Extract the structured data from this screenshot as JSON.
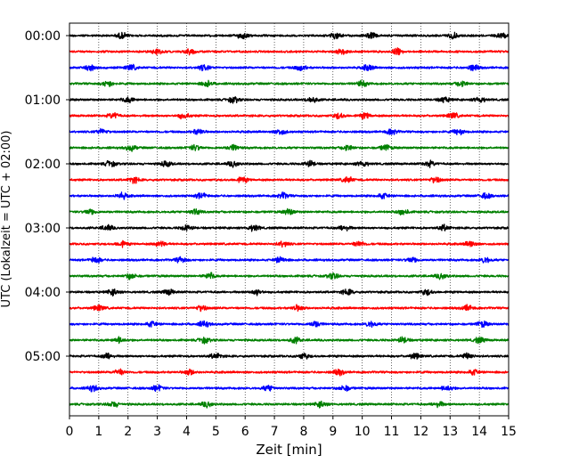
{
  "chart_data": {
    "type": "line",
    "title": "",
    "xlabel": "Zeit  [min]",
    "ylabel": "UTC (Lokalzeit = UTC + 02:00)",
    "xlim": [
      0,
      15
    ],
    "x_ticks": [
      "0",
      "1",
      "2",
      "3",
      "4",
      "5",
      "6",
      "7",
      "8",
      "9",
      "10",
      "11",
      "12",
      "13",
      "14",
      "15"
    ],
    "vertical_grid": "dotted, every 1 min",
    "y_tick_labels": [
      {
        "label": "00:00",
        "row": 0
      },
      {
        "label": "01:00",
        "row": 4
      },
      {
        "label": "02:00",
        "row": 8
      },
      {
        "label": "03:00",
        "row": 12
      },
      {
        "label": "04:00",
        "row": 16
      },
      {
        "label": "05:00",
        "row": 20
      }
    ],
    "trace_interval_min": 15,
    "trace_colors_cycle": [
      "#000000",
      "#ff0000",
      "#0000ff",
      "#008000"
    ],
    "rows": [
      {
        "start": "00:00",
        "color": "#000000",
        "bursts_min": [
          1.8,
          5.9,
          9.1,
          10.3,
          13.1,
          14.8
        ]
      },
      {
        "start": "00:15",
        "color": "#ff0000",
        "bursts_min": [
          3.0,
          4.1,
          9.3,
          11.2
        ]
      },
      {
        "start": "00:30",
        "color": "#0000ff",
        "bursts_min": [
          0.7,
          2.1,
          4.6,
          7.9,
          10.2,
          13.8
        ]
      },
      {
        "start": "00:45",
        "color": "#008000",
        "bursts_min": [
          1.3,
          4.7,
          10.0,
          13.4
        ]
      },
      {
        "start": "01:00",
        "color": "#000000",
        "bursts_min": [
          2.0,
          5.6,
          8.3,
          12.8,
          14.0
        ]
      },
      {
        "start": "01:15",
        "color": "#ff0000",
        "bursts_min": [
          1.5,
          3.9,
          9.2,
          10.1,
          13.1
        ]
      },
      {
        "start": "01:30",
        "color": "#0000ff",
        "bursts_min": [
          1.1,
          4.4,
          7.2,
          11.0,
          13.3
        ]
      },
      {
        "start": "01:45",
        "color": "#008000",
        "bursts_min": [
          2.1,
          4.3,
          5.6,
          9.5,
          10.8
        ]
      },
      {
        "start": "02:00",
        "color": "#000000",
        "bursts_min": [
          1.4,
          3.3,
          5.6,
          8.2,
          10.0,
          12.3
        ]
      },
      {
        "start": "02:15",
        "color": "#ff0000",
        "bursts_min": [
          2.2,
          5.9,
          9.5,
          12.5
        ]
      },
      {
        "start": "02:30",
        "color": "#0000ff",
        "bursts_min": [
          1.8,
          4.5,
          7.3,
          10.7,
          14.2
        ]
      },
      {
        "start": "02:45",
        "color": "#008000",
        "bursts_min": [
          0.7,
          4.3,
          7.5,
          11.4
        ]
      },
      {
        "start": "03:00",
        "color": "#000000",
        "bursts_min": [
          1.3,
          4.0,
          6.3,
          9.4,
          12.8
        ]
      },
      {
        "start": "03:15",
        "color": "#ff0000",
        "bursts_min": [
          1.8,
          3.1,
          7.3,
          9.9,
          13.7
        ]
      },
      {
        "start": "03:30",
        "color": "#0000ff",
        "bursts_min": [
          0.9,
          3.8,
          7.2,
          11.7,
          14.2
        ]
      },
      {
        "start": "03:45",
        "color": "#008000",
        "bursts_min": [
          2.1,
          4.8,
          9.0,
          12.7
        ]
      },
      {
        "start": "04:00",
        "color": "#000000",
        "bursts_min": [
          1.5,
          3.4,
          6.4,
          9.5,
          12.2
        ]
      },
      {
        "start": "04:15",
        "color": "#ff0000",
        "bursts_min": [
          1.0,
          4.5,
          7.8,
          13.6
        ]
      },
      {
        "start": "04:30",
        "color": "#0000ff",
        "bursts_min": [
          2.8,
          4.6,
          8.4,
          10.3,
          14.1
        ]
      },
      {
        "start": "04:45",
        "color": "#008000",
        "bursts_min": [
          1.7,
          4.6,
          7.7,
          11.4,
          14.0
        ]
      },
      {
        "start": "05:00",
        "color": "#000000",
        "bursts_min": [
          1.3,
          5.0,
          8.0,
          11.8,
          13.6
        ]
      },
      {
        "start": "05:15",
        "color": "#ff0000",
        "bursts_min": [
          1.7,
          4.1,
          9.2,
          13.8
        ]
      },
      {
        "start": "05:30",
        "color": "#0000ff",
        "bursts_min": [
          0.8,
          3.0,
          6.8,
          9.4,
          12.9
        ]
      },
      {
        "start": "05:45",
        "color": "#008000",
        "bursts_min": [
          1.5,
          4.7,
          8.6,
          12.6
        ]
      }
    ]
  }
}
